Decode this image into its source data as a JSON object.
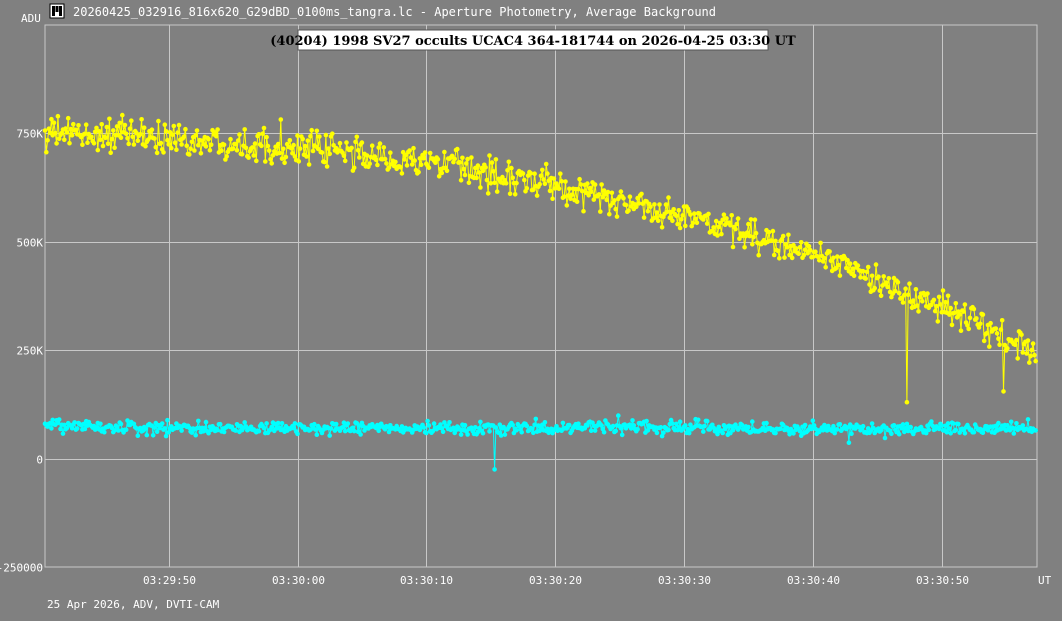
{
  "window": {
    "title": "20260425_032916_816x620_G29dBD_0100ms_tangra.lc - Aperture Photometry, Average Background",
    "icon": "tangra-logo-icon"
  },
  "footer": {
    "info": "25 Apr 2026, ADV, DVTI-CAM"
  },
  "chart_data": {
    "type": "line",
    "title": "(40204) 1998 SV27 occults UCAC4 364-181744 on 2026-04-25  03:30 UT",
    "ylabel": "ADU",
    "xlabel": "UT",
    "ylim": [
      -250000,
      1000000
    ],
    "y_ticks": [
      {
        "value": 750000,
        "label": "750K"
      },
      {
        "value": 500000,
        "label": "500K"
      },
      {
        "value": 250000,
        "label": "250K"
      },
      {
        "value": 0,
        "label": "0"
      },
      {
        "value": -250000,
        "label": "-250000"
      }
    ],
    "x_range_seconds": [
      0,
      77
    ],
    "x_ticks": [
      {
        "t": 9.6,
        "label": "03:29:50"
      },
      {
        "t": 19.6,
        "label": "03:30:00"
      },
      {
        "t": 29.6,
        "label": "03:30:10"
      },
      {
        "t": 39.6,
        "label": "03:30:20"
      },
      {
        "t": 49.6,
        "label": "03:30:30"
      },
      {
        "t": 59.6,
        "label": "03:30:40"
      },
      {
        "t": 69.6,
        "label": "03:30:50"
      }
    ],
    "grid": true,
    "series": [
      {
        "color": "#ffff00",
        "num_points": 770,
        "start_time": "03:29:40.4",
        "frame_interval_s": 0.1,
        "trend_values": [
          750000,
          745000,
          735000,
          722000,
          705000,
          682000,
          652000,
          615000,
          575000,
          530000,
          475000,
          405000,
          330000,
          240000
        ],
        "scatter_amplitude": 55000,
        "dips": [
          {
            "time": "03:30:47.3",
            "value": 130000
          },
          {
            "time": "03:30:54.8",
            "value": 155000
          }
        ]
      },
      {
        "color": "#00ffff",
        "num_points": 770,
        "start_time": "03:29:40.4",
        "frame_interval_s": 0.1,
        "trend_values": [
          75000,
          72000,
          70000,
          70000,
          72000,
          70000,
          70000,
          70000,
          72000,
          70000,
          70000,
          70000,
          70000,
          70000
        ],
        "scatter_amplitude": 22000,
        "dips": [
          {
            "time": "03:30:15.3",
            "value": -25000
          }
        ]
      }
    ]
  },
  "colors": {
    "background": "#808080",
    "grid": "#c8c8c8",
    "target_series": "#ffff00",
    "comparison_series": "#00ffff",
    "text": "#ffffff",
    "title_text": "#000000",
    "title_box": "#ffffff"
  }
}
